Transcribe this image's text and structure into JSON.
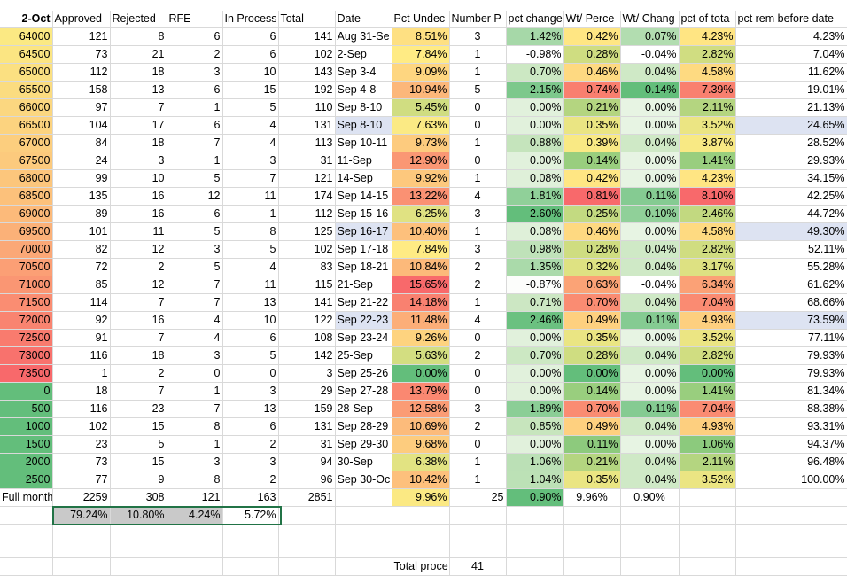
{
  "header": [
    "2-Oct",
    "Approved",
    "Rejected",
    "RFE",
    "In Process",
    "Total",
    "Date",
    "Pct Undec",
    "Number P",
    "pct change",
    "Wt/ Perce",
    "Wt/ Chang",
    "pct of tota",
    "pct rem before date"
  ],
  "rows": [
    {
      "label": "64000",
      "approved": "121",
      "rejected": "8",
      "rfe": "6",
      "inprocess": "6",
      "total": "141",
      "date": "Aug 31-Se",
      "pct_undec": "8.51%",
      "number": "3",
      "pct_change": "1.42%",
      "wt_perc": "0.42%",
      "wt_change": "0.07%",
      "pct_total": "4.23%",
      "pct_rem": "4.23%"
    },
    {
      "label": "64500",
      "approved": "73",
      "rejected": "21",
      "rfe": "2",
      "inprocess": "6",
      "total": "102",
      "date": "2-Sep",
      "pct_undec": "7.84%",
      "number": "1",
      "pct_change": "-0.98%",
      "wt_perc": "0.28%",
      "wt_change": "-0.04%",
      "pct_total": "2.82%",
      "pct_rem": "7.04%"
    },
    {
      "label": "65000",
      "approved": "112",
      "rejected": "18",
      "rfe": "3",
      "inprocess": "10",
      "total": "143",
      "date": "Sep 3-4",
      "pct_undec": "9.09%",
      "number": "1",
      "pct_change": "0.70%",
      "wt_perc": "0.46%",
      "wt_change": "0.04%",
      "pct_total": "4.58%",
      "pct_rem": "11.62%"
    },
    {
      "label": "65500",
      "approved": "158",
      "rejected": "13",
      "rfe": "6",
      "inprocess": "15",
      "total": "192",
      "date": "Sep 4-8",
      "pct_undec": "10.94%",
      "number": "5",
      "pct_change": "2.15%",
      "wt_perc": "0.74%",
      "wt_change": "0.14%",
      "pct_total": "7.39%",
      "pct_rem": "19.01%"
    },
    {
      "label": "66000",
      "approved": "97",
      "rejected": "7",
      "rfe": "1",
      "inprocess": "5",
      "total": "110",
      "date": "Sep 8-10",
      "pct_undec": "5.45%",
      "number": "0",
      "pct_change": "0.00%",
      "wt_perc": "0.21%",
      "wt_change": "0.00%",
      "pct_total": "2.11%",
      "pct_rem": "21.13%"
    },
    {
      "label": "66500",
      "approved": "104",
      "rejected": "17",
      "rfe": "6",
      "inprocess": "4",
      "total": "131",
      "date": "Sep 8-10",
      "pct_undec": "7.63%",
      "number": "0",
      "pct_change": "0.00%",
      "wt_perc": "0.35%",
      "wt_change": "0.00%",
      "pct_total": "3.52%",
      "pct_rem": "24.65%"
    },
    {
      "label": "67000",
      "approved": "84",
      "rejected": "18",
      "rfe": "7",
      "inprocess": "4",
      "total": "113",
      "date": "Sep 10-11",
      "pct_undec": "9.73%",
      "number": "1",
      "pct_change": "0.88%",
      "wt_perc": "0.39%",
      "wt_change": "0.04%",
      "pct_total": "3.87%",
      "pct_rem": "28.52%"
    },
    {
      "label": "67500",
      "approved": "24",
      "rejected": "3",
      "rfe": "1",
      "inprocess": "3",
      "total": "31",
      "date": "11-Sep",
      "pct_undec": "12.90%",
      "number": "0",
      "pct_change": "0.00%",
      "wt_perc": "0.14%",
      "wt_change": "0.00%",
      "pct_total": "1.41%",
      "pct_rem": "29.93%"
    },
    {
      "label": "68000",
      "approved": "99",
      "rejected": "10",
      "rfe": "5",
      "inprocess": "7",
      "total": "121",
      "date": "14-Sep",
      "pct_undec": "9.92%",
      "number": "1",
      "pct_change": "0.08%",
      "wt_perc": "0.42%",
      "wt_change": "0.00%",
      "pct_total": "4.23%",
      "pct_rem": "34.15%"
    },
    {
      "label": "68500",
      "approved": "135",
      "rejected": "16",
      "rfe": "12",
      "inprocess": "11",
      "total": "174",
      "date": "Sep 14-15",
      "pct_undec": "13.22%",
      "number": "4",
      "pct_change": "1.81%",
      "wt_perc": "0.81%",
      "wt_change": "0.11%",
      "pct_total": "8.10%",
      "pct_rem": "42.25%"
    },
    {
      "label": "69000",
      "approved": "89",
      "rejected": "16",
      "rfe": "6",
      "inprocess": "1",
      "total": "112",
      "date": "Sep 15-16",
      "pct_undec": "6.25%",
      "number": "3",
      "pct_change": "2.60%",
      "wt_perc": "0.25%",
      "wt_change": "0.10%",
      "pct_total": "2.46%",
      "pct_rem": "44.72%"
    },
    {
      "label": "69500",
      "approved": "101",
      "rejected": "11",
      "rfe": "5",
      "inprocess": "8",
      "total": "125",
      "date": "Sep 16-17",
      "pct_undec": "10.40%",
      "number": "1",
      "pct_change": "0.08%",
      "wt_perc": "0.46%",
      "wt_change": "0.00%",
      "pct_total": "4.58%",
      "pct_rem": "49.30%"
    },
    {
      "label": "70000",
      "approved": "82",
      "rejected": "12",
      "rfe": "3",
      "inprocess": "5",
      "total": "102",
      "date": "Sep 17-18",
      "pct_undec": "7.84%",
      "number": "3",
      "pct_change": "0.98%",
      "wt_perc": "0.28%",
      "wt_change": "0.04%",
      "pct_total": "2.82%",
      "pct_rem": "52.11%"
    },
    {
      "label": "70500",
      "approved": "72",
      "rejected": "2",
      "rfe": "5",
      "inprocess": "4",
      "total": "83",
      "date": "Sep 18-21",
      "pct_undec": "10.84%",
      "number": "2",
      "pct_change": "1.35%",
      "wt_perc": "0.32%",
      "wt_change": "0.04%",
      "pct_total": "3.17%",
      "pct_rem": "55.28%"
    },
    {
      "label": "71000",
      "approved": "85",
      "rejected": "12",
      "rfe": "7",
      "inprocess": "11",
      "total": "115",
      "date": "21-Sep",
      "pct_undec": "15.65%",
      "number": "2",
      "pct_change": "-0.87%",
      "wt_perc": "0.63%",
      "wt_change": "-0.04%",
      "pct_total": "6.34%",
      "pct_rem": "61.62%"
    },
    {
      "label": "71500",
      "approved": "114",
      "rejected": "7",
      "rfe": "7",
      "inprocess": "13",
      "total": "141",
      "date": "Sep 21-22",
      "pct_undec": "14.18%",
      "number": "1",
      "pct_change": "0.71%",
      "wt_perc": "0.70%",
      "wt_change": "0.04%",
      "pct_total": "7.04%",
      "pct_rem": "68.66%"
    },
    {
      "label": "72000",
      "approved": "92",
      "rejected": "16",
      "rfe": "4",
      "inprocess": "10",
      "total": "122",
      "date": "Sep 22-23",
      "pct_undec": "11.48%",
      "number": "4",
      "pct_change": "2.46%",
      "wt_perc": "0.49%",
      "wt_change": "0.11%",
      "pct_total": "4.93%",
      "pct_rem": "73.59%"
    },
    {
      "label": "72500",
      "approved": "91",
      "rejected": "7",
      "rfe": "4",
      "inprocess": "6",
      "total": "108",
      "date": "Sep 23-24",
      "pct_undec": "9.26%",
      "number": "0",
      "pct_change": "0.00%",
      "wt_perc": "0.35%",
      "wt_change": "0.00%",
      "pct_total": "3.52%",
      "pct_rem": "77.11%"
    },
    {
      "label": "73000",
      "approved": "116",
      "rejected": "18",
      "rfe": "3",
      "inprocess": "5",
      "total": "142",
      "date": "25-Sep",
      "pct_undec": "5.63%",
      "number": "2",
      "pct_change": "0.70%",
      "wt_perc": "0.28%",
      "wt_change": "0.04%",
      "pct_total": "2.82%",
      "pct_rem": "79.93%"
    },
    {
      "label": "73500",
      "approved": "1",
      "rejected": "2",
      "rfe": "0",
      "inprocess": "0",
      "total": "3",
      "date": "Sep 25-26",
      "pct_undec": "0.00%",
      "number": "0",
      "pct_change": "0.00%",
      "wt_perc": "0.00%",
      "wt_change": "0.00%",
      "pct_total": "0.00%",
      "pct_rem": "79.93%"
    },
    {
      "label": "0",
      "approved": "18",
      "rejected": "7",
      "rfe": "1",
      "inprocess": "3",
      "total": "29",
      "date": "Sep 27-28",
      "pct_undec": "13.79%",
      "number": "0",
      "pct_change": "0.00%",
      "wt_perc": "0.14%",
      "wt_change": "0.00%",
      "pct_total": "1.41%",
      "pct_rem": "81.34%"
    },
    {
      "label": "500",
      "approved": "116",
      "rejected": "23",
      "rfe": "7",
      "inprocess": "13",
      "total": "159",
      "date": "28-Sep",
      "pct_undec": "12.58%",
      "number": "3",
      "pct_change": "1.89%",
      "wt_perc": "0.70%",
      "wt_change": "0.11%",
      "pct_total": "7.04%",
      "pct_rem": "88.38%"
    },
    {
      "label": "1000",
      "approved": "102",
      "rejected": "15",
      "rfe": "8",
      "inprocess": "6",
      "total": "131",
      "date": "Sep 28-29",
      "pct_undec": "10.69%",
      "number": "2",
      "pct_change": "0.85%",
      "wt_perc": "0.49%",
      "wt_change": "0.04%",
      "pct_total": "4.93%",
      "pct_rem": "93.31%"
    },
    {
      "label": "1500",
      "approved": "23",
      "rejected": "5",
      "rfe": "1",
      "inprocess": "2",
      "total": "31",
      "date": "Sep 29-30",
      "pct_undec": "9.68%",
      "number": "0",
      "pct_change": "0.00%",
      "wt_perc": "0.11%",
      "wt_change": "0.00%",
      "pct_total": "1.06%",
      "pct_rem": "94.37%"
    },
    {
      "label": "2000",
      "approved": "73",
      "rejected": "15",
      "rfe": "3",
      "inprocess": "3",
      "total": "94",
      "date": "30-Sep",
      "pct_undec": "6.38%",
      "number": "1",
      "pct_change": "1.06%",
      "wt_perc": "0.21%",
      "wt_change": "0.04%",
      "pct_total": "2.11%",
      "pct_rem": "96.48%"
    },
    {
      "label": "2500",
      "approved": "77",
      "rejected": "9",
      "rfe": "8",
      "inprocess": "2",
      "total": "96",
      "date": "Sep 30-Oc",
      "pct_undec": "10.42%",
      "number": "1",
      "pct_change": "1.04%",
      "wt_perc": "0.35%",
      "wt_change": "0.04%",
      "pct_total": "3.52%",
      "pct_rem": "100.00%"
    }
  ],
  "full_month": {
    "label": "Full month",
    "approved": "2259",
    "rejected": "308",
    "rfe": "121",
    "inprocess": "163",
    "total": "2851",
    "date": "",
    "pct_undec": "9.96%",
    "number": "25",
    "pct_change": "0.90%",
    "wt_perc": "9.96%",
    "wt_change": "0.90%"
  },
  "pct_row": {
    "approved": "79.24%",
    "rejected": "10.80%",
    "rfe": "4.24%",
    "inprocess": "5.72%"
  },
  "total_processed": {
    "label": "Total proce",
    "value": "41"
  },
  "colors": {
    "yellow": "#fbe983",
    "orange": "#fcc47c",
    "salmon": "#f98b73",
    "red": "#f8696b",
    "green": "#63be7b",
    "light_green": "#c9e6bf",
    "pale_green": "#d3ecce",
    "lavender": "#dde3f2",
    "grey": "#c9c9c9",
    "select": "#217346"
  }
}
